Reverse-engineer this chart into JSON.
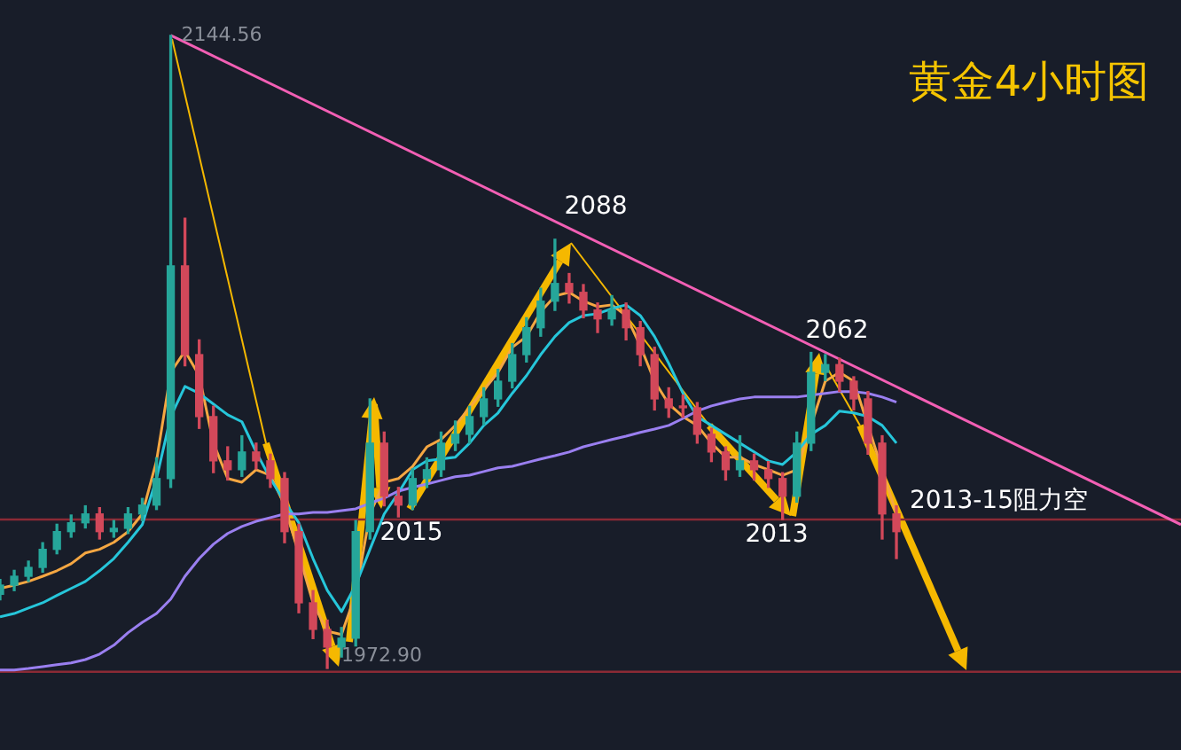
{
  "chart_data": {
    "type": "candlestick",
    "title": "黄金4小时图",
    "tick_labels": false,
    "categories": [
      null,
      null,
      null,
      null,
      null,
      null,
      null,
      null,
      null,
      null,
      null,
      null,
      null,
      null,
      null,
      null,
      null,
      null,
      null,
      null,
      null,
      null,
      null,
      null,
      null,
      null,
      null,
      null,
      null,
      null,
      null,
      null,
      null,
      null,
      null,
      null,
      null,
      null,
      null,
      null,
      null,
      null,
      null,
      null,
      null,
      null,
      null,
      null,
      null,
      null,
      null,
      null,
      null,
      null,
      null,
      null,
      null,
      null,
      null,
      null,
      null,
      null,
      null,
      null,
      null,
      null,
      null,
      null,
      null,
      null,
      null,
      null,
      null,
      null,
      null,
      null,
      null,
      null,
      null,
      null,
      null,
      null,
      null,
      null
    ],
    "ohlc": [
      [
        1993.0,
        1997.0,
        1991.5,
        1995.5
      ],
      [
        1995.5,
        1999.5,
        1994.0,
        1997.9
      ],
      [
        1997.9,
        2002.0,
        1996.5,
        2000.3
      ],
      [
        2000.3,
        2007.0,
        1999.0,
        2005.2
      ],
      [
        2005.2,
        2012.0,
        2004.0,
        2010.0
      ],
      [
        2010.0,
        2014.5,
        2008.5,
        2012.4
      ],
      [
        2012.4,
        2017.0,
        2011.0,
        2014.8
      ],
      [
        2014.8,
        2016.5,
        2008.0,
        2010.0
      ],
      [
        2010.0,
        2013.0,
        2008.5,
        2010.9
      ],
      [
        2010.9,
        2016.5,
        2009.5,
        2014.8
      ],
      [
        2014.8,
        2019.0,
        2013.0,
        2017.2
      ],
      [
        2017.2,
        2030.0,
        2016.0,
        2024.4
      ],
      [
        2024.4,
        2144.56,
        2022.0,
        2082.1
      ],
      [
        2082.1,
        2095.0,
        2055.0,
        2058.0
      ],
      [
        2058.0,
        2062.0,
        2038.0,
        2041.2
      ],
      [
        2041.2,
        2044.0,
        2026.0,
        2029.2
      ],
      [
        2029.2,
        2033.0,
        2024.0,
        2026.8
      ],
      [
        2026.8,
        2036.0,
        2025.0,
        2031.6
      ],
      [
        2031.6,
        2034.0,
        2027.0,
        2029.2
      ],
      [
        2029.2,
        2031.0,
        2022.0,
        2024.4
      ],
      [
        2024.4,
        2026.0,
        2007.0,
        2010.0
      ],
      [
        2010.0,
        2012.0,
        1988.0,
        1990.7
      ],
      [
        1990.7,
        1994.0,
        1981.0,
        1983.5
      ],
      [
        1983.5,
        1986.0,
        1972.9,
        1978.7
      ],
      [
        1978.7,
        1984.0,
        1976.0,
        1981.1
      ],
      [
        1981.1,
        2013.0,
        1979.0,
        2010.0
      ],
      [
        2010.0,
        2046.0,
        2008.0,
        2034.0
      ],
      [
        2034.0,
        2037.0,
        2017.0,
        2019.6
      ],
      [
        2019.6,
        2022.0,
        2014.0,
        2017.2
      ],
      [
        2017.2,
        2027.0,
        2016.0,
        2024.4
      ],
      [
        2024.4,
        2030.0,
        2022.0,
        2026.8
      ],
      [
        2026.8,
        2037.0,
        2025.0,
        2034.0
      ],
      [
        2034.0,
        2040.0,
        2032.0,
        2036.4
      ],
      [
        2036.4,
        2044.0,
        2034.0,
        2041.2
      ],
      [
        2041.2,
        2049.0,
        2039.0,
        2046.0
      ],
      [
        2046.0,
        2054.0,
        2044.0,
        2050.8
      ],
      [
        2050.8,
        2061.0,
        2049.0,
        2058.0
      ],
      [
        2058.0,
        2068.0,
        2056.0,
        2065.3
      ],
      [
        2065.3,
        2076.0,
        2063.0,
        2072.5
      ],
      [
        2072.5,
        2089.3,
        2070.0,
        2077.3
      ],
      [
        2077.3,
        2080.0,
        2072.0,
        2074.9
      ],
      [
        2074.9,
        2077.0,
        2068.0,
        2070.1
      ],
      [
        2070.1,
        2072.0,
        2064.0,
        2067.7
      ],
      [
        2067.7,
        2074.0,
        2066.0,
        2070.1
      ],
      [
        2070.1,
        2072.0,
        2062.0,
        2065.3
      ],
      [
        2065.3,
        2067.0,
        2055.0,
        2058.0
      ],
      [
        2058.0,
        2060.0,
        2043.0,
        2046.0
      ],
      [
        2046.0,
        2049.0,
        2041.0,
        2043.6
      ],
      [
        2043.6,
        2047.0,
        2041.0,
        2043.6
      ],
      [
        2043.6,
        2045.0,
        2034.0,
        2036.4
      ],
      [
        2036.4,
        2038.0,
        2029.0,
        2031.6
      ],
      [
        2031.6,
        2033.0,
        2024.0,
        2026.8
      ],
      [
        2026.8,
        2036.0,
        2025.0,
        2029.2
      ],
      [
        2029.2,
        2031.0,
        2024.0,
        2026.8
      ],
      [
        2026.8,
        2029.0,
        2022.0,
        2024.4
      ],
      [
        2024.4,
        2026.0,
        2013.3,
        2019.6
      ],
      [
        2019.6,
        2037.0,
        2018.0,
        2034.0
      ],
      [
        2034.0,
        2058.6,
        2032.0,
        2053.2
      ],
      [
        2053.2,
        2058.0,
        2051.0,
        2055.3
      ],
      [
        2055.3,
        2057.0,
        2048.0,
        2050.8
      ],
      [
        2050.8,
        2052.0,
        2043.0,
        2046.0
      ],
      [
        2046.0,
        2048.0,
        2031.0,
        2034.0
      ],
      [
        2034.0,
        2036.0,
        2008.0,
        2014.8
      ],
      [
        2014.8,
        2017.0,
        2002.7,
        2010.0
      ],
      null,
      null,
      null,
      null,
      null,
      null,
      null,
      null,
      null,
      null,
      null,
      null,
      null,
      null,
      null,
      null,
      null,
      null,
      null,
      null
    ],
    "colors": [
      "#26a69a",
      "#26a69a",
      "#26a69a",
      "#26a69a",
      "#26a69a",
      "#26a69a",
      "#26a69a",
      "#d2485a",
      "#26a69a",
      "#26a69a",
      "#26a69a",
      "#26a69a",
      "#26a69a",
      "#d2485a",
      "#d2485a",
      "#d2485a",
      "#d2485a",
      "#26a69a",
      "#d2485a",
      "#d2485a",
      "#d2485a",
      "#d2485a",
      "#d2485a",
      "#d2485a",
      "#26a69a",
      "#26a69a",
      "#26a69a",
      "#d2485a",
      "#d2485a",
      "#26a69a",
      "#26a69a",
      "#26a69a",
      "#26a69a",
      "#26a69a",
      "#26a69a",
      "#26a69a",
      "#26a69a",
      "#26a69a",
      "#26a69a",
      "#26a69a",
      "#d2485a",
      "#d2485a",
      "#d2485a",
      "#26a69a",
      "#d2485a",
      "#d2485a",
      "#d2485a",
      "#d2485a",
      "#d2485a",
      "#d2485a",
      "#d2485a",
      "#d2485a",
      "#26a69a",
      "#d2485a",
      "#d2485a",
      "#d2485a",
      "#26a69a",
      "#26a69a",
      "#26a69a",
      "#d2485a",
      "#d2485a",
      "#d2485a",
      "#d2485a",
      "#d2485a",
      null,
      null,
      null,
      null,
      null,
      null,
      null,
      null,
      null,
      null,
      null,
      null,
      null,
      null,
      null,
      null,
      null,
      null,
      null,
      null
    ],
    "series": [
      {
        "type": "line",
        "color": "#9a7ff0",
        "values": [
          1972.5,
          1972.5,
          1972.9,
          1973.4,
          1973.9,
          1974.4,
          1975.3,
          1976.8,
          1979.2,
          1982.6,
          1985.4,
          1987.8,
          1991.7,
          1997.9,
          2002.7,
          2006.6,
          2009.5,
          2011.4,
          2012.8,
          2013.8,
          2014.8,
          2014.8,
          2015.2,
          2015.2,
          2015.7,
          2016.2,
          2017.7,
          2019.1,
          2021.0,
          2022.0,
          2022.9,
          2023.9,
          2024.9,
          2025.3,
          2026.3,
          2027.3,
          2027.7,
          2028.7,
          2029.7,
          2030.6,
          2031.6,
          2033.0,
          2034.0,
          2035.0,
          2035.9,
          2036.9,
          2037.8,
          2038.8,
          2040.7,
          2042.7,
          2044.1,
          2045.1,
          2046.0,
          2046.5,
          2046.5,
          2046.5,
          2046.5,
          2047.0,
          2047.5,
          2048.0,
          2048.0,
          2047.5,
          2046.5,
          2045.1,
          null,
          null,
          null,
          null,
          null,
          null,
          null,
          null,
          null,
          null,
          null,
          null,
          null,
          null,
          null,
          null,
          null,
          null,
          null,
          null
        ]
      },
      {
        "type": "line",
        "color": "#26c6da",
        "values": [
          1986.9,
          1987.8,
          1989.3,
          1990.7,
          1992.7,
          1994.6,
          1996.5,
          1999.4,
          2002.7,
          2007.1,
          2011.9,
          2024.4,
          2041.2,
          2049.4,
          2047.5,
          2044.6,
          2041.7,
          2039.8,
          2031.6,
          2024.4,
          2018.1,
          2012.4,
          2002.7,
          1994.1,
          1988.3,
          1995.5,
          2005.2,
          2014.8,
          2020.5,
          2026.8,
          2029.2,
          2029.7,
          2030.2,
          2034.0,
          2038.8,
          2042.2,
          2047.5,
          2052.3,
          2058.0,
          2062.9,
          2066.7,
          2068.6,
          2069.1,
          2070.5,
          2071.5,
          2068.6,
          2062.9,
          2055.6,
          2047.5,
          2041.2,
          2038.8,
          2036.4,
          2034.0,
          2031.6,
          2029.2,
          2028.2,
          2031.6,
          2036.4,
          2038.8,
          2042.7,
          2042.2,
          2041.2,
          2038.8,
          2034.0,
          null,
          null,
          null,
          null,
          null,
          null,
          null,
          null,
          null,
          null,
          null,
          null,
          null,
          null,
          null,
          null,
          null,
          null,
          null,
          null
        ]
      },
      {
        "type": "line",
        "color": "#f5a742",
        "values": [
          1994.6,
          1995.5,
          1996.5,
          1997.9,
          1999.4,
          2001.3,
          2004.2,
          2005.2,
          2007.1,
          2010.0,
          2014.8,
          2029.2,
          2053.2,
          2059.0,
          2052.3,
          2034.0,
          2024.4,
          2023.4,
          2026.8,
          2025.3,
          2017.2,
          null,
          1990.7,
          1983.0,
          1982.1,
          1993.1,
          2014.8,
          2023.4,
          2024.4,
          2027.7,
          2033.0,
          2035.0,
          2038.8,
          2043.6,
          2048.4,
          2053.2,
          2060.0,
          2062.9,
          2069.6,
          2073.9,
          2074.9,
          2072.5,
          2071.0,
          2071.5,
          2068.6,
          2060.4,
          2050.8,
          2044.6,
          2041.2,
          2038.8,
          2034.0,
          2030.2,
          2030.2,
          2028.2,
          2026.8,
          2025.3,
          2026.8,
          null,
          2050.8,
          2053.2,
          2050.8,
          null,
          null,
          2014.8,
          null,
          null,
          null,
          null,
          null,
          null,
          null,
          null,
          null,
          null,
          null,
          null,
          null,
          null,
          null,
          null,
          null,
          null,
          null,
          null
        ]
      },
      {
        "type": "line",
        "color": "#f25fb4",
        "values": [
          null,
          null,
          null,
          null,
          null,
          null,
          null,
          null,
          null,
          null,
          null,
          null,
          2144.6,
          null,
          null,
          null,
          null,
          null,
          null,
          null,
          null,
          null,
          null,
          null,
          null,
          null,
          null,
          null,
          null,
          null,
          null,
          null,
          null,
          null,
          null,
          null,
          null,
          null,
          null,
          null,
          null,
          null,
          null,
          null,
          null,
          null,
          null,
          null,
          null,
          null,
          null,
          null,
          null,
          null,
          null,
          null,
          null,
          null,
          null,
          null,
          null,
          null,
          null,
          null,
          null,
          null,
          null,
          null,
          null,
          null,
          null,
          null,
          null,
          null,
          null,
          null,
          null,
          null,
          null,
          null,
          null,
          null,
          null,
          2011.9
        ]
      }
    ],
    "ref_lines": [
      {
        "axis": "y",
        "value": 2013.3,
        "label": "2013-15阻力空",
        "color": "#8b2a35"
      },
      {
        "axis": "y",
        "value": 1972.0,
        "color": "#8b2a35"
      }
    ],
    "annotations": [
      "2144.56",
      "1972.90",
      "2088",
      "2015",
      "2013",
      "2062"
    ]
  }
}
